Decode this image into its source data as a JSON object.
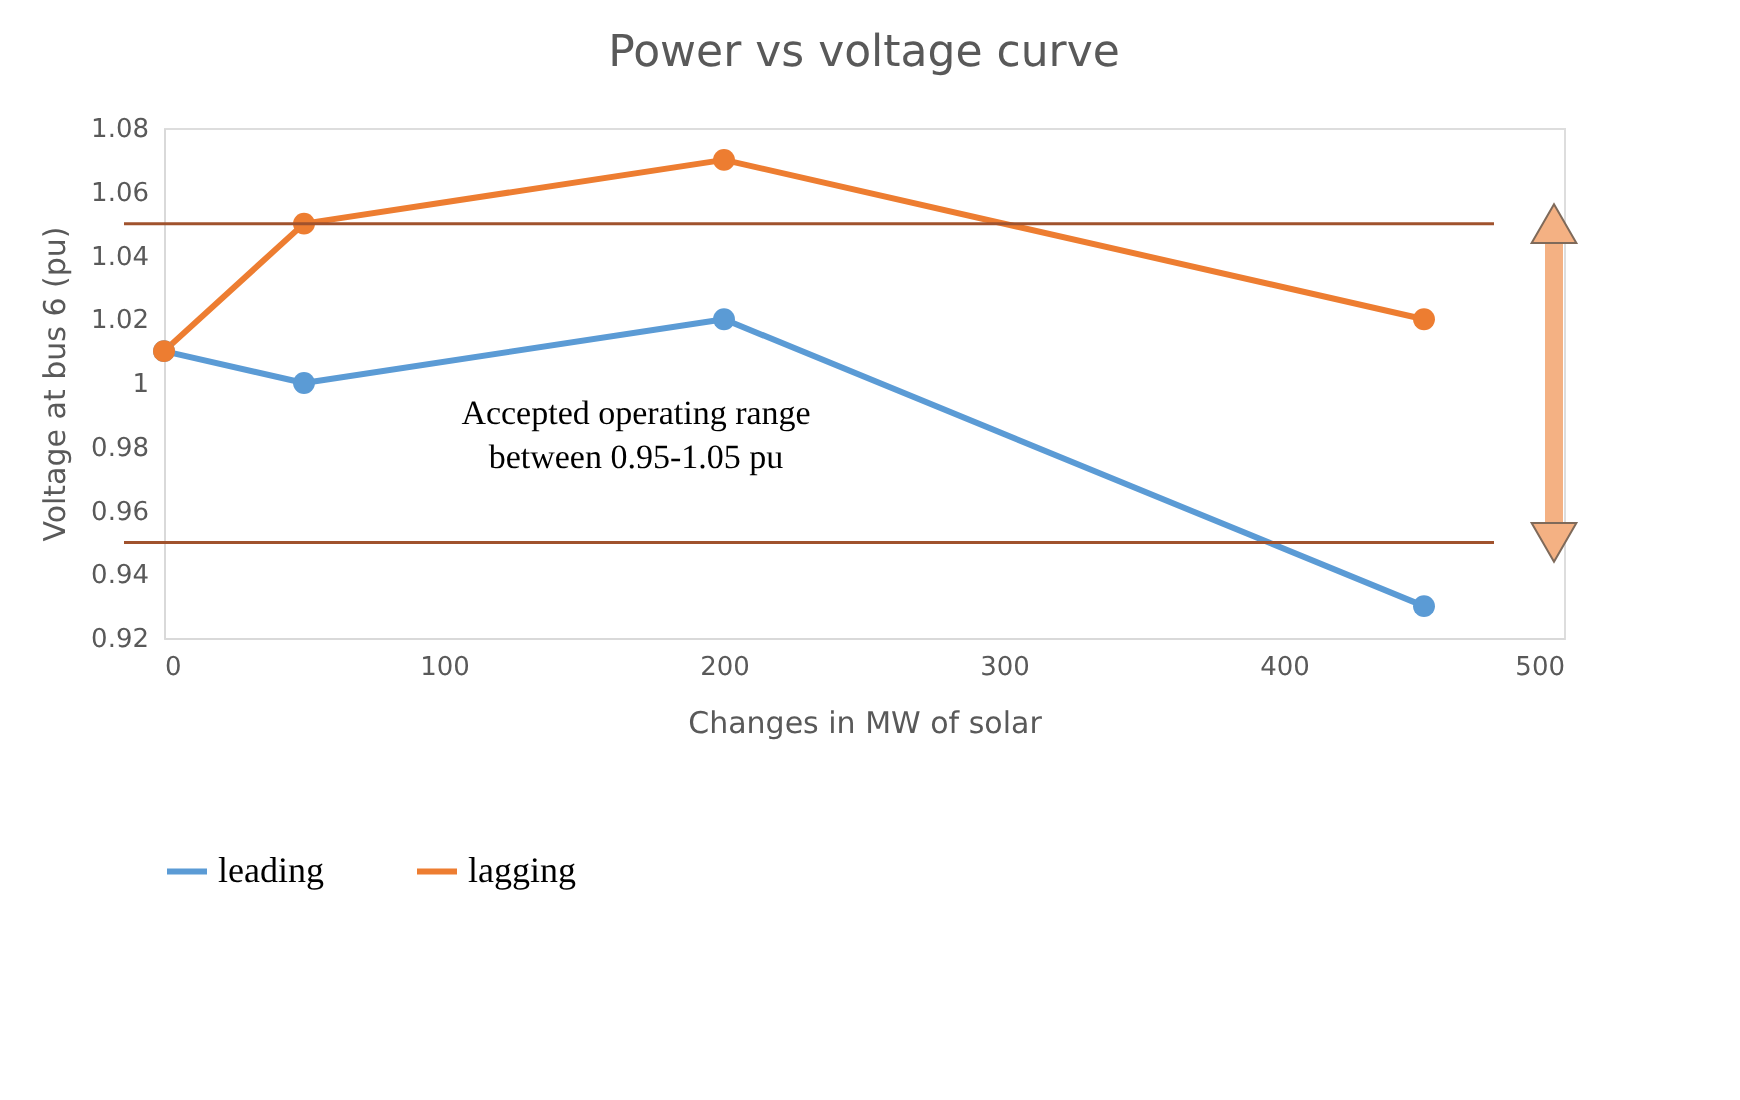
{
  "chart_data": {
    "type": "line",
    "title": "Power vs voltage curve",
    "xlabel": "Changes in MW of solar",
    "ylabel": "Voltage at bus 6 (pu)",
    "x": [
      0,
      50,
      200,
      450
    ],
    "series": [
      {
        "name": "leading",
        "color": "#5b9bd5",
        "values": [
          1.01,
          1.0,
          1.02,
          0.93
        ]
      },
      {
        "name": "lagging",
        "color": "#ed7d31",
        "values": [
          1.01,
          1.05,
          1.07,
          1.02
        ]
      }
    ],
    "xlim": [
      0,
      500
    ],
    "xticks": [
      0,
      100,
      200,
      300,
      400,
      500
    ],
    "ylim": [
      0.92,
      1.08
    ],
    "yticks": [
      0.92,
      0.94,
      0.96,
      0.98,
      1,
      1.02,
      1.04,
      1.06,
      1.08
    ],
    "ref_lines": [
      {
        "axis": "y",
        "value": 1.05,
        "color": "#a0522d"
      },
      {
        "axis": "y",
        "value": 0.95,
        "color": "#a0522d"
      }
    ],
    "annotations": [
      "Accepted operating range between 0.95-1.05 pu"
    ],
    "grid": false,
    "legend": "bottom",
    "marker": "circle",
    "line_style": "solid"
  }
}
